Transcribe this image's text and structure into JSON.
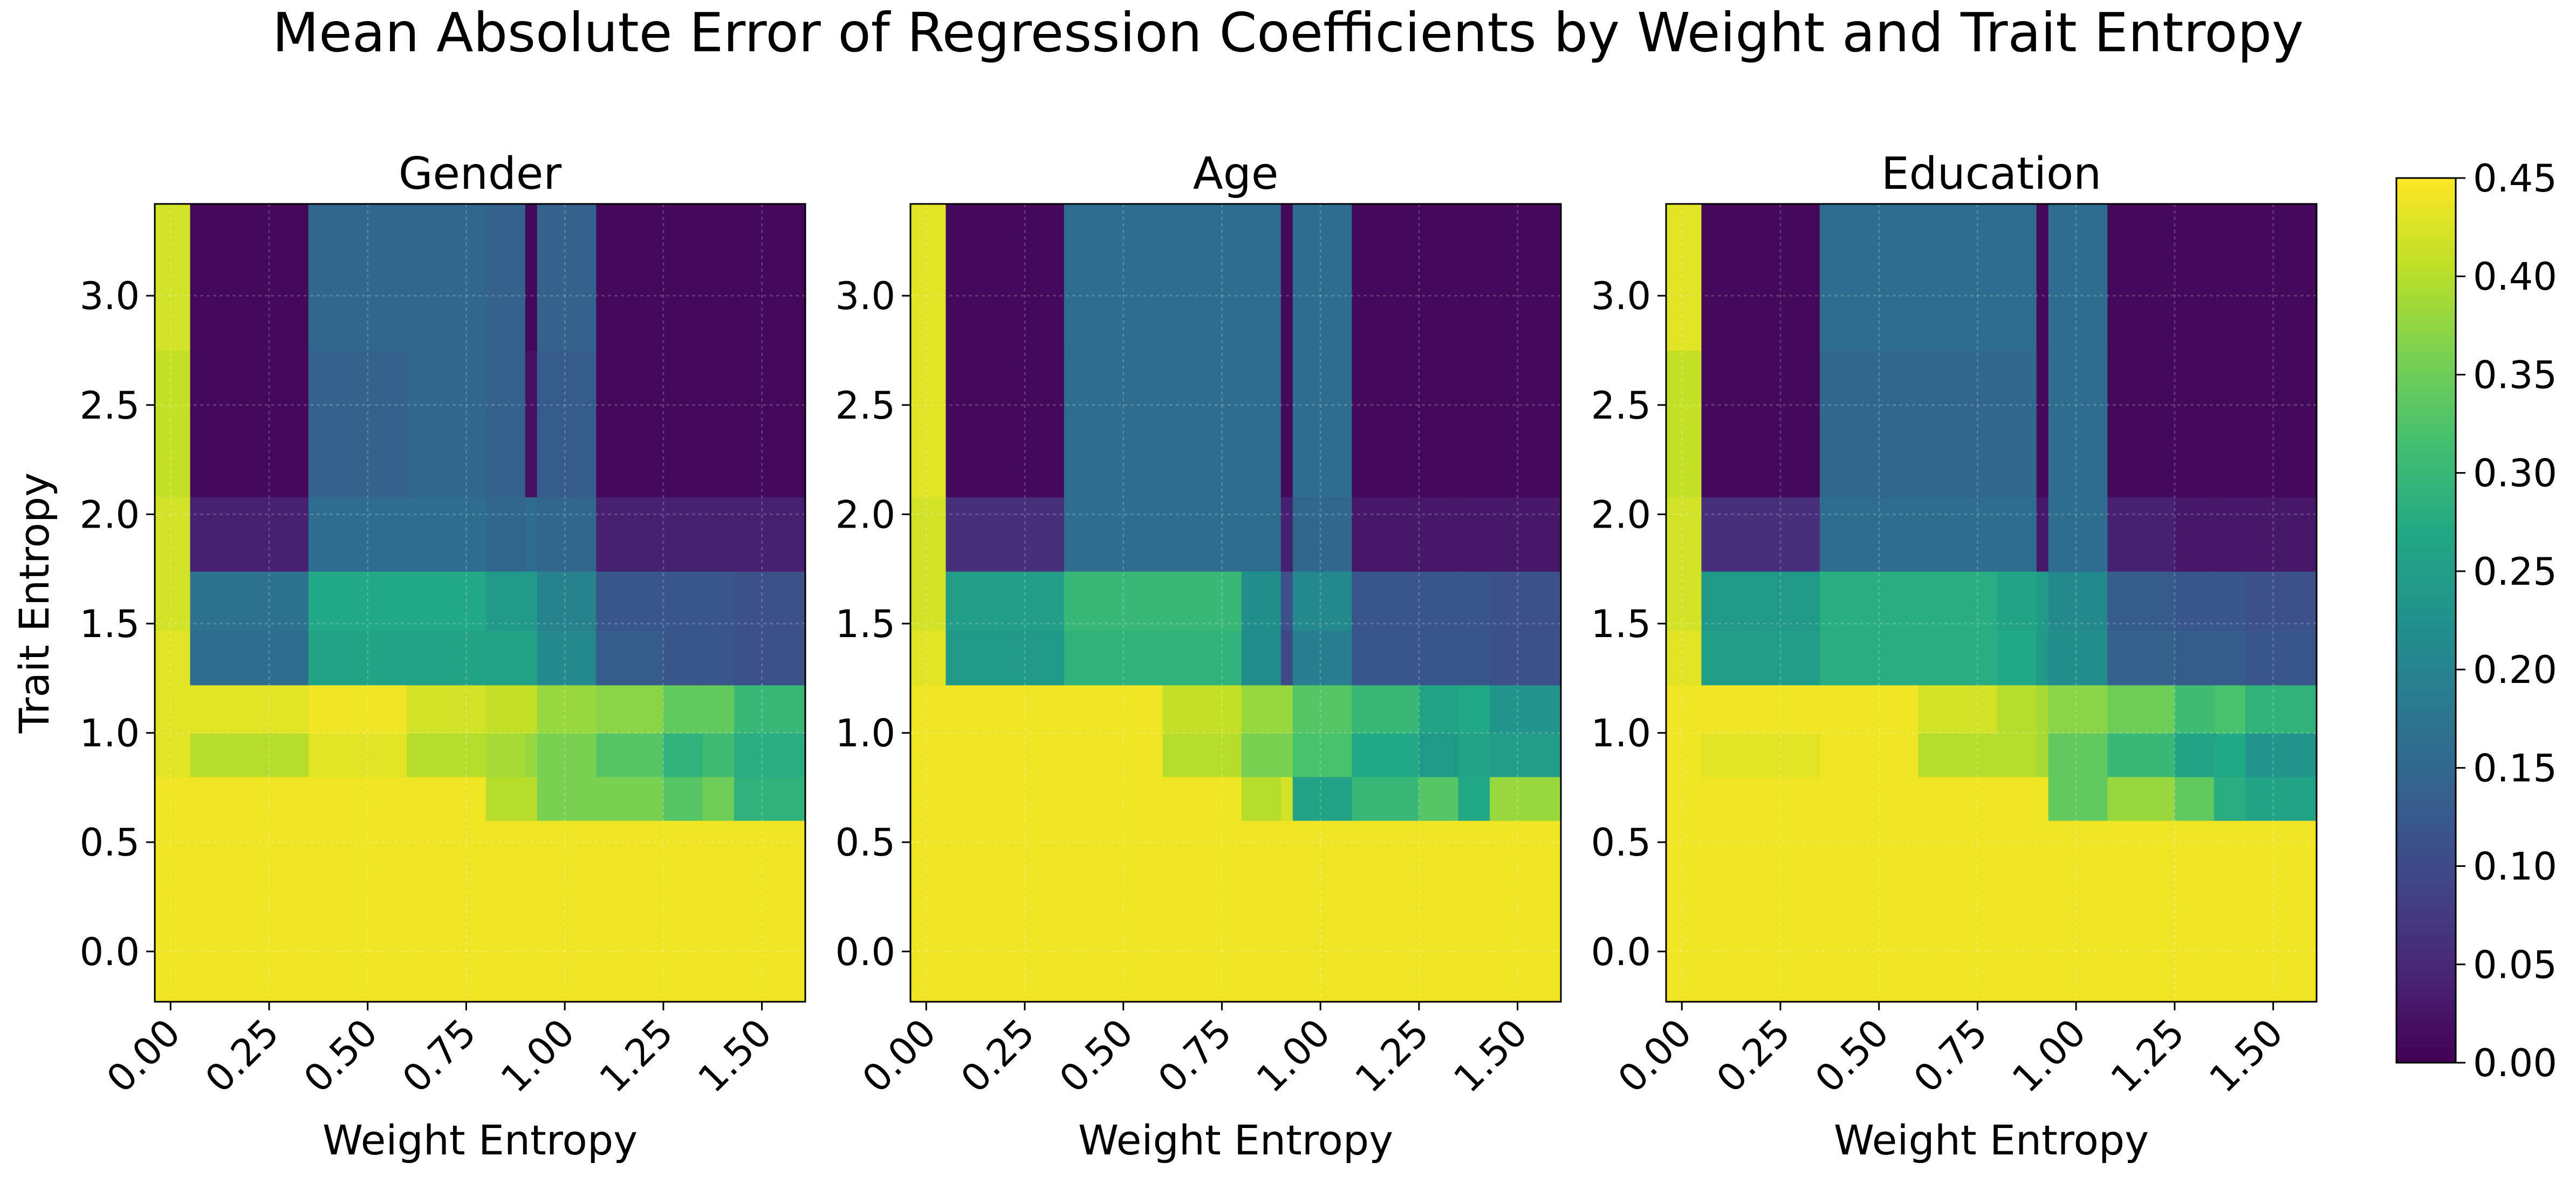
{
  "figure": {
    "title": "Mean Absolute Error of Regression Coefficients by Weight and Trait Entropy"
  },
  "colorbar": {
    "ticks": [
      "0.00",
      "0.05",
      "0.10",
      "0.15",
      "0.20",
      "0.25",
      "0.30",
      "0.35",
      "0.40",
      "0.45"
    ],
    "range": [
      0.0,
      0.45
    ],
    "colormap": "viridis"
  },
  "chart_data": [
    {
      "type": "heatmap",
      "title": "Gender",
      "xlabel": "Weight Entropy",
      "ylabel": "Trait Entropy",
      "x_ticks": [
        "0.00",
        "0.25",
        "0.50",
        "0.75",
        "1.00",
        "1.25",
        "1.50"
      ],
      "y_ticks": [
        "0.0",
        "0.5",
        "1.0",
        "1.5",
        "2.0",
        "2.5",
        "3.0"
      ],
      "x_range": [
        -0.04,
        1.61
      ],
      "y_range": [
        -0.23,
        3.42
      ],
      "x_edges": [
        -0.04,
        0.05,
        0.35,
        0.6,
        0.8,
        0.9,
        0.93,
        1.08,
        1.25,
        1.35,
        1.43,
        1.61
      ],
      "y_edges": [
        -0.23,
        0.6,
        0.8,
        1.0,
        1.22,
        1.47,
        1.74,
        2.08,
        2.75,
        3.42
      ],
      "z": [
        [
          0.44,
          0.44,
          0.44,
          0.44,
          0.44,
          0.44,
          0.44,
          0.44,
          0.44,
          0.44,
          0.44
        ],
        [
          0.44,
          0.44,
          0.44,
          0.44,
          0.4,
          0.4,
          0.36,
          0.36,
          0.33,
          0.35,
          0.29
        ],
        [
          0.43,
          0.4,
          0.43,
          0.4,
          0.39,
          0.38,
          0.36,
          0.33,
          0.29,
          0.31,
          0.28
        ],
        [
          0.43,
          0.43,
          0.44,
          0.42,
          0.41,
          0.41,
          0.38,
          0.37,
          0.34,
          0.34,
          0.3
        ],
        [
          0.43,
          0.16,
          0.26,
          0.26,
          0.26,
          0.26,
          0.21,
          0.13,
          0.12,
          0.12,
          0.11
        ],
        [
          0.42,
          0.17,
          0.27,
          0.27,
          0.24,
          0.24,
          0.2,
          0.12,
          0.12,
          0.12,
          0.11
        ],
        [
          0.42,
          0.04,
          0.16,
          0.16,
          0.15,
          0.16,
          0.15,
          0.04,
          0.04,
          0.04,
          0.04
        ],
        [
          0.41,
          0.01,
          0.14,
          0.15,
          0.14,
          0.02,
          0.13,
          0.01,
          0.01,
          0.01,
          0.01
        ],
        [
          0.42,
          0.01,
          0.15,
          0.15,
          0.14,
          0.01,
          0.14,
          0.01,
          0.01,
          0.01,
          0.01
        ]
      ]
    },
    {
      "type": "heatmap",
      "title": "Age",
      "xlabel": "Weight Entropy",
      "ylabel": "",
      "x_ticks": [
        "0.00",
        "0.25",
        "0.50",
        "0.75",
        "1.00",
        "1.25",
        "1.50"
      ],
      "y_ticks": [
        "0.0",
        "0.5",
        "1.0",
        "1.5",
        "2.0",
        "2.5",
        "3.0"
      ],
      "x_range": [
        -0.04,
        1.61
      ],
      "y_range": [
        -0.23,
        3.42
      ],
      "x_edges": [
        -0.04,
        0.05,
        0.35,
        0.6,
        0.8,
        0.9,
        0.93,
        1.08,
        1.25,
        1.35,
        1.43,
        1.61
      ],
      "y_edges": [
        -0.23,
        0.6,
        0.8,
        1.0,
        1.22,
        1.47,
        1.74,
        2.08,
        2.75,
        3.42
      ],
      "z": [
        [
          0.44,
          0.44,
          0.44,
          0.44,
          0.44,
          0.44,
          0.44,
          0.44,
          0.44,
          0.44,
          0.44
        ],
        [
          0.44,
          0.44,
          0.44,
          0.44,
          0.4,
          0.42,
          0.26,
          0.3,
          0.33,
          0.27,
          0.38
        ],
        [
          0.44,
          0.44,
          0.44,
          0.4,
          0.36,
          0.36,
          0.32,
          0.27,
          0.24,
          0.26,
          0.25
        ],
        [
          0.44,
          0.44,
          0.44,
          0.41,
          0.38,
          0.38,
          0.33,
          0.3,
          0.26,
          0.27,
          0.23
        ],
        [
          0.43,
          0.24,
          0.29,
          0.29,
          0.22,
          0.1,
          0.19,
          0.12,
          0.12,
          0.12,
          0.11
        ],
        [
          0.42,
          0.25,
          0.3,
          0.3,
          0.22,
          0.11,
          0.21,
          0.12,
          0.12,
          0.12,
          0.11
        ],
        [
          0.42,
          0.06,
          0.16,
          0.16,
          0.16,
          0.04,
          0.15,
          0.03,
          0.03,
          0.03,
          0.03
        ],
        [
          0.43,
          0.01,
          0.16,
          0.16,
          0.16,
          0.01,
          0.16,
          0.01,
          0.01,
          0.01,
          0.01
        ],
        [
          0.43,
          0.01,
          0.16,
          0.16,
          0.16,
          0.01,
          0.16,
          0.01,
          0.01,
          0.01,
          0.01
        ]
      ]
    },
    {
      "type": "heatmap",
      "title": "Education",
      "xlabel": "Weight Entropy",
      "ylabel": "",
      "x_ticks": [
        "0.00",
        "0.25",
        "0.50",
        "0.75",
        "1.00",
        "1.25",
        "1.50"
      ],
      "y_ticks": [
        "0.0",
        "0.5",
        "1.0",
        "1.5",
        "2.0",
        "2.5",
        "3.0"
      ],
      "x_range": [
        -0.04,
        1.61
      ],
      "y_range": [
        -0.23,
        3.42
      ],
      "x_edges": [
        -0.04,
        0.05,
        0.35,
        0.6,
        0.8,
        0.9,
        0.93,
        1.08,
        1.25,
        1.35,
        1.43,
        1.61
      ],
      "y_edges": [
        -0.23,
        0.6,
        0.8,
        1.0,
        1.22,
        1.47,
        1.74,
        2.08,
        2.75,
        3.42
      ],
      "z": [
        [
          0.44,
          0.44,
          0.44,
          0.44,
          0.44,
          0.44,
          0.44,
          0.44,
          0.44,
          0.44,
          0.44
        ],
        [
          0.44,
          0.44,
          0.44,
          0.44,
          0.44,
          0.44,
          0.34,
          0.38,
          0.34,
          0.28,
          0.26
        ],
        [
          0.44,
          0.43,
          0.44,
          0.4,
          0.4,
          0.39,
          0.34,
          0.3,
          0.26,
          0.27,
          0.23
        ],
        [
          0.44,
          0.44,
          0.44,
          0.42,
          0.4,
          0.39,
          0.37,
          0.35,
          0.31,
          0.32,
          0.29
        ],
        [
          0.43,
          0.25,
          0.28,
          0.28,
          0.27,
          0.24,
          0.22,
          0.14,
          0.13,
          0.13,
          0.12
        ],
        [
          0.42,
          0.24,
          0.28,
          0.28,
          0.26,
          0.24,
          0.21,
          0.13,
          0.12,
          0.12,
          0.11
        ],
        [
          0.42,
          0.06,
          0.16,
          0.16,
          0.16,
          0.03,
          0.16,
          0.04,
          0.03,
          0.03,
          0.03
        ],
        [
          0.41,
          0.01,
          0.15,
          0.15,
          0.15,
          0.01,
          0.16,
          0.01,
          0.01,
          0.01,
          0.01
        ],
        [
          0.43,
          0.01,
          0.16,
          0.16,
          0.16,
          0.01,
          0.16,
          0.01,
          0.01,
          0.01,
          0.01
        ]
      ]
    }
  ]
}
